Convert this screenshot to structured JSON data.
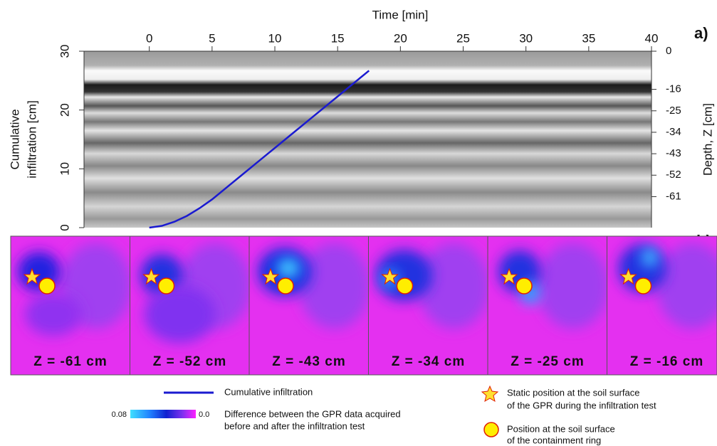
{
  "chart_data": {
    "type": "line",
    "xlabel": "Time [min]",
    "ylabel": [
      "Cumulative",
      "infiltration [cm]"
    ],
    "y2label": "Depth, Z [cm]",
    "annotations": [
      "a)"
    ],
    "x": [
      0,
      1,
      2,
      3,
      4,
      5,
      7,
      9,
      11,
      13,
      15,
      17.5
    ],
    "series": [
      {
        "name": "Cumulative infiltration",
        "color": "#1a1ad0",
        "values": [
          0,
          0.3,
          1.0,
          2.0,
          3.3,
          4.8,
          8.3,
          11.8,
          15.3,
          18.8,
          22.3,
          26.7
        ]
      }
    ],
    "xlim": [
      -5.2,
      40
    ],
    "xticks": [
      0,
      5,
      10,
      15,
      20,
      25,
      30,
      35,
      40
    ],
    "ylim": [
      0,
      30
    ],
    "yticks": [
      0,
      10,
      20,
      30
    ],
    "y2lim": [
      -74,
      0
    ],
    "y2ticks": [
      0,
      -16,
      -25,
      -34,
      -43,
      -52,
      -61
    ]
  },
  "panels": {
    "label": "b)",
    "maps": [
      "Z = -61 cm",
      "Z = -52 cm",
      "Z = -43 cm",
      "Z = -34 cm",
      "Z = -25 cm",
      "Z = -16 cm"
    ]
  },
  "legend": {
    "colorbar_labels": [
      "0.08",
      "0.0"
    ],
    "difference": [
      "Difference between the GPR data acquired",
      "before and after the infiltration test"
    ],
    "star": [
      "Static position at the soil surface",
      "of the GPR during the infiltration test"
    ],
    "circle": [
      "Position at the soil surface",
      "of the containment ring"
    ]
  }
}
